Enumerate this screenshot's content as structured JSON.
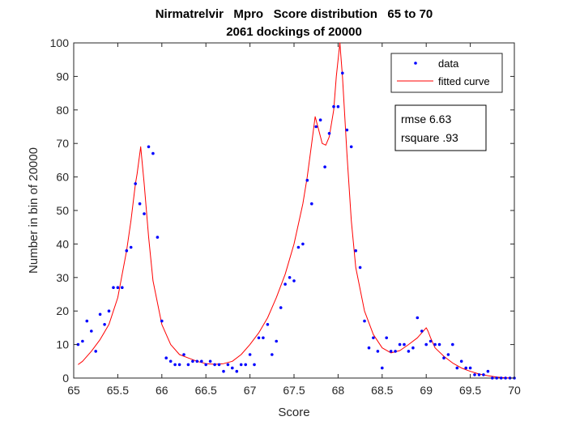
{
  "chart_data": {
    "type": "scatter",
    "title": "Nirmatrelvir   Mpro   Score distribution   65 to 70",
    "subtitle": "2061 dockings of 20000",
    "xlabel": "Score",
    "ylabel": "Number in bin of 20000",
    "xlim": [
      65,
      70
    ],
    "ylim": [
      0,
      100
    ],
    "xticks": [
      "65",
      "65.5",
      "66",
      "66.5",
      "67",
      "67.5",
      "68",
      "68.5",
      "69",
      "69.5",
      "70"
    ],
    "yticks": [
      "0",
      "10",
      "20",
      "30",
      "40",
      "50",
      "60",
      "70",
      "80",
      "90",
      "100"
    ],
    "grid": false,
    "legend": {
      "position": "top-right",
      "entries": [
        "data",
        "fitted curve"
      ]
    },
    "annotation": {
      "lines": [
        "rmse 6.63",
        "rsquare .93"
      ]
    },
    "series": [
      {
        "name": "data",
        "style": "points",
        "color": "#0000ff",
        "x": [
          65.05,
          65.1,
          65.15,
          65.2,
          65.25,
          65.3,
          65.35,
          65.4,
          65.45,
          65.5,
          65.55,
          65.6,
          65.65,
          65.7,
          65.75,
          65.8,
          65.85,
          65.9,
          65.95,
          66.0,
          66.05,
          66.1,
          66.15,
          66.2,
          66.25,
          66.3,
          66.35,
          66.4,
          66.45,
          66.5,
          66.55,
          66.6,
          66.65,
          66.7,
          66.75,
          66.8,
          66.85,
          66.9,
          66.95,
          67.0,
          67.05,
          67.1,
          67.15,
          67.2,
          67.25,
          67.3,
          67.35,
          67.4,
          67.45,
          67.5,
          67.55,
          67.6,
          67.65,
          67.7,
          67.75,
          67.8,
          67.85,
          67.9,
          67.95,
          68.0,
          68.05,
          68.1,
          68.15,
          68.2,
          68.25,
          68.3,
          68.35,
          68.4,
          68.45,
          68.5,
          68.55,
          68.6,
          68.65,
          68.7,
          68.75,
          68.8,
          68.85,
          68.9,
          68.95,
          69.0,
          69.05,
          69.1,
          69.15,
          69.2,
          69.25,
          69.3,
          69.35,
          69.4,
          69.45,
          69.5,
          69.55,
          69.6,
          69.65,
          69.7,
          69.75,
          69.8,
          69.85,
          69.9,
          69.95,
          70.0
        ],
        "y": [
          10,
          11,
          17,
          14,
          8,
          19,
          16,
          20,
          27,
          27,
          27,
          38,
          39,
          58,
          52,
          49,
          69,
          67,
          42,
          17,
          6,
          5,
          4,
          4,
          7,
          4,
          5,
          5,
          5,
          4,
          5,
          4,
          4,
          2,
          4,
          3,
          2,
          4,
          4,
          7,
          4,
          12,
          12,
          16,
          7,
          11,
          21,
          28,
          30,
          29,
          39,
          40,
          59,
          52,
          75,
          77,
          63,
          73,
          81,
          81,
          91,
          74,
          69,
          38,
          33,
          17,
          9,
          12,
          8,
          3,
          12,
          8,
          8,
          10,
          10,
          8,
          9,
          18,
          14,
          10,
          11,
          10,
          10,
          6,
          7,
          10,
          3,
          5,
          3,
          3,
          1,
          1,
          1,
          2,
          0,
          0,
          0,
          0,
          0,
          0
        ]
      },
      {
        "name": "fitted curve",
        "style": "line",
        "color": "#ff0000",
        "x": [
          65.05,
          65.1,
          65.2,
          65.3,
          65.4,
          65.5,
          65.6,
          65.65,
          65.7,
          65.72,
          65.76,
          65.8,
          65.85,
          65.9,
          66.0,
          66.1,
          66.2,
          66.3,
          66.4,
          66.5,
          66.6,
          66.7,
          66.8,
          66.9,
          67.0,
          67.1,
          67.2,
          67.3,
          67.4,
          67.5,
          67.6,
          67.65,
          67.7,
          67.74,
          67.78,
          67.82,
          67.86,
          67.9,
          67.95,
          67.98,
          68.02,
          68.05,
          68.1,
          68.15,
          68.2,
          68.3,
          68.4,
          68.5,
          68.6,
          68.7,
          68.8,
          68.9,
          68.95,
          69.0,
          69.02,
          69.05,
          69.1,
          69.2,
          69.3,
          69.4,
          69.5,
          69.6,
          69.7,
          69.8,
          69.9,
          70.0
        ],
        "y": [
          4,
          5,
          8,
          11.5,
          16,
          24,
          38,
          47,
          58,
          61,
          69,
          58,
          42,
          29,
          16,
          10,
          7,
          6,
          5,
          4.3,
          4.1,
          4.3,
          5,
          7,
          10,
          13.5,
          18,
          24,
          31,
          40,
          52,
          60,
          70,
          78,
          74,
          70,
          69.5,
          72,
          80,
          90,
          100,
          90,
          67,
          47,
          33,
          20,
          13,
          9,
          7.5,
          8.2,
          10,
          12,
          13.5,
          15,
          14,
          12,
          9,
          6.5,
          4.5,
          3,
          2,
          1.2,
          0.7,
          0.3,
          0.1,
          0
        ]
      }
    ]
  }
}
